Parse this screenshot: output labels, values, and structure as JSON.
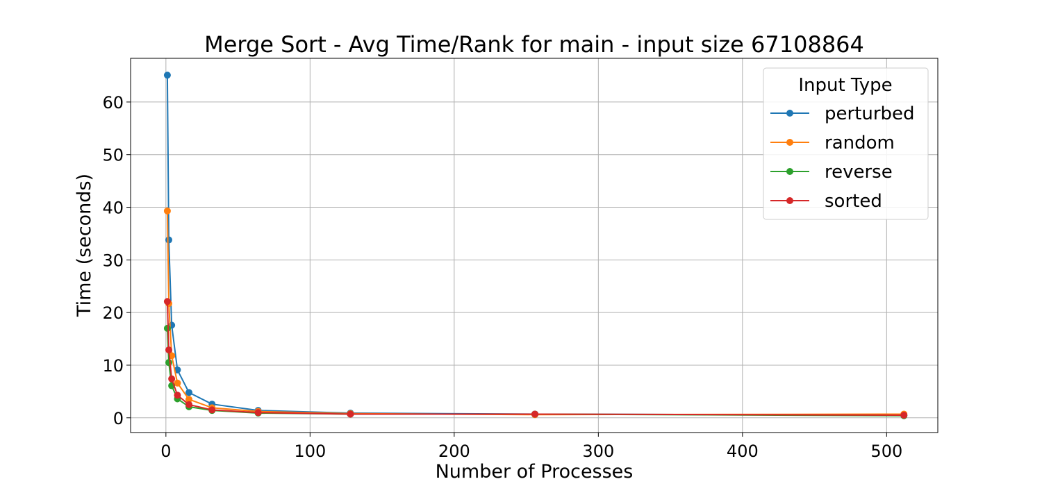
{
  "chart_data": {
    "type": "line",
    "title": "Merge Sort - Avg Time/Rank for main - input size 67108864",
    "xlabel": "Number of Processes",
    "ylabel": "Time (seconds)",
    "xlim": [
      -24.5,
      535.5
    ],
    "ylim": [
      -2.8,
      68.3
    ],
    "x_ticks": [
      0,
      100,
      200,
      300,
      400,
      500
    ],
    "y_ticks": [
      0,
      10,
      20,
      30,
      40,
      50,
      60
    ],
    "grid": true,
    "legend": {
      "title": "Input Type",
      "placement": "top-right"
    },
    "series": [
      {
        "name": "perturbed",
        "color": "#1f77b4",
        "x": [
          1,
          2,
          4,
          8,
          16,
          32,
          64,
          128,
          256,
          512
        ],
        "y": [
          65.1,
          33.8,
          17.6,
          9.1,
          4.8,
          2.6,
          1.4,
          0.9,
          0.7,
          0.5
        ]
      },
      {
        "name": "random",
        "color": "#ff7f0e",
        "x": [
          1,
          2,
          4,
          8,
          16,
          32,
          64,
          128,
          256,
          512
        ],
        "y": [
          39.3,
          21.7,
          11.8,
          6.6,
          3.5,
          1.9,
          1.2,
          0.8,
          0.6,
          0.7
        ]
      },
      {
        "name": "reverse",
        "color": "#2ca02c",
        "x": [
          1,
          2,
          4,
          8,
          16,
          32,
          64,
          128,
          256,
          512
        ],
        "y": [
          17.0,
          10.5,
          6.1,
          3.6,
          2.1,
          1.4,
          0.9,
          0.7,
          0.7,
          0.4
        ]
      },
      {
        "name": "sorted",
        "color": "#d62728",
        "x": [
          1,
          2,
          4,
          8,
          16,
          32,
          64,
          128,
          256,
          512
        ],
        "y": [
          22.1,
          12.9,
          7.4,
          4.3,
          2.5,
          1.5,
          1.0,
          0.7,
          0.7,
          0.5
        ]
      }
    ]
  }
}
